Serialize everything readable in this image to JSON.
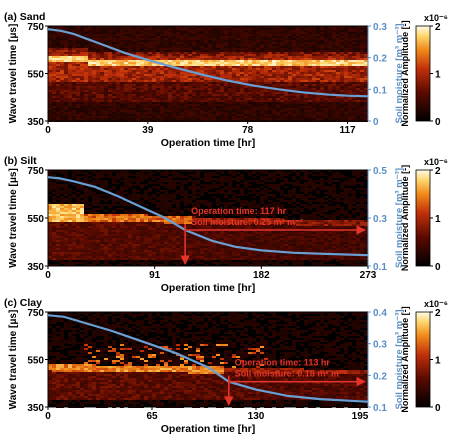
{
  "chart_data": [
    {
      "type": "heatmap",
      "panel_label": "(a) Sand",
      "xlabel": "Operation time [hr]",
      "ylabel": "Wave travel time [μs]",
      "y2label": "Soil moisture [m³ m⁻³]",
      "colorbar_label": "Normalized Amplitude [-]",
      "colorbar_exponent": "x10⁻⁶",
      "colorbar_range": [
        0,
        2
      ],
      "colorbar_ticks": [
        0,
        1,
        2
      ],
      "xlim": [
        0,
        125
      ],
      "xticks": [
        0,
        39,
        78,
        117
      ],
      "ylim": [
        350,
        750
      ],
      "yticks": [
        350,
        550,
        750
      ],
      "y2lim": [
        0,
        0.3
      ],
      "y2ticks": [
        0,
        0.1,
        0.2,
        0.3
      ],
      "moisture_series": {
        "x": [
          0,
          5,
          10,
          15,
          20,
          30,
          40,
          50,
          60,
          70,
          80,
          90,
          100,
          110,
          117,
          125
        ],
        "y": [
          0.29,
          0.285,
          0.275,
          0.26,
          0.245,
          0.215,
          0.19,
          0.168,
          0.147,
          0.128,
          0.112,
          0.1,
          0.09,
          0.083,
          0.08,
          0.078
        ]
      },
      "bright_band_us": [
        {
          "x": [
            0,
            15
          ],
          "center": 615,
          "width": 25
        },
        {
          "x": [
            15,
            125
          ],
          "center": 600,
          "width": 25
        }
      ]
    },
    {
      "type": "heatmap",
      "panel_label": "(b) Silt",
      "xlabel": "Operation time [hr]",
      "ylabel": "Wave travel time [μs]",
      "y2label": "Soil moisture [m³ m⁻³]",
      "colorbar_label": "Normalized Amplitude [-]",
      "colorbar_exponent": "x10⁻⁶",
      "colorbar_range": [
        0,
        2
      ],
      "colorbar_ticks": [
        0,
        1,
        2
      ],
      "xlim": [
        0,
        273
      ],
      "xticks": [
        0,
        91,
        182,
        273
      ],
      "ylim": [
        350,
        750
      ],
      "yticks": [
        350,
        550,
        750
      ],
      "y2lim": [
        0.1,
        0.5
      ],
      "y2ticks": [
        0.1,
        0.3,
        0.5
      ],
      "moisture_series": {
        "x": [
          0,
          10,
          20,
          40,
          60,
          80,
          100,
          117,
          140,
          160,
          182,
          210,
          240,
          273
        ],
        "y": [
          0.47,
          0.465,
          0.455,
          0.43,
          0.39,
          0.345,
          0.3,
          0.25,
          0.205,
          0.18,
          0.165,
          0.155,
          0.15,
          0.145
        ]
      },
      "annotation": {
        "line1": "Operation time: 117 hr",
        "line2": "Soil moisture: 0.25 m³ m⁻³",
        "x": 117,
        "y2": 0.25
      }
    },
    {
      "type": "heatmap",
      "panel_label": "(c) Clay",
      "xlabel": "Operation time [hr]",
      "ylabel": "Wave travel time [μs]",
      "y2label": "Soil moisture [m³ m⁻³]",
      "colorbar_label": "Normalized Amplitude [-]",
      "colorbar_exponent": "x10⁻⁶",
      "colorbar_range": [
        0,
        2
      ],
      "colorbar_ticks": [
        0,
        1,
        2
      ],
      "xlim": [
        0,
        200
      ],
      "xticks": [
        0,
        65,
        130,
        195
      ],
      "ylim": [
        350,
        750
      ],
      "yticks": [
        350,
        550,
        750
      ],
      "y2lim": [
        0.1,
        0.4
      ],
      "y2ticks": [
        0.1,
        0.2,
        0.3,
        0.4
      ],
      "moisture_series": {
        "x": [
          0,
          10,
          20,
          40,
          60,
          80,
          100,
          113,
          130,
          150,
          170,
          195,
          200
        ],
        "y": [
          0.39,
          0.385,
          0.37,
          0.34,
          0.305,
          0.27,
          0.225,
          0.18,
          0.155,
          0.135,
          0.125,
          0.118,
          0.117
        ]
      },
      "annotation": {
        "line1": "Operation time: 113 hr",
        "line2": "Soil moisture: 0.18 m³ m⁻³",
        "x": 113,
        "y2": 0.18
      }
    }
  ],
  "colors": {
    "moisture_line": "#6a9fd4",
    "annotation": "#e2342a",
    "axis_right": "#5b8fc4"
  }
}
